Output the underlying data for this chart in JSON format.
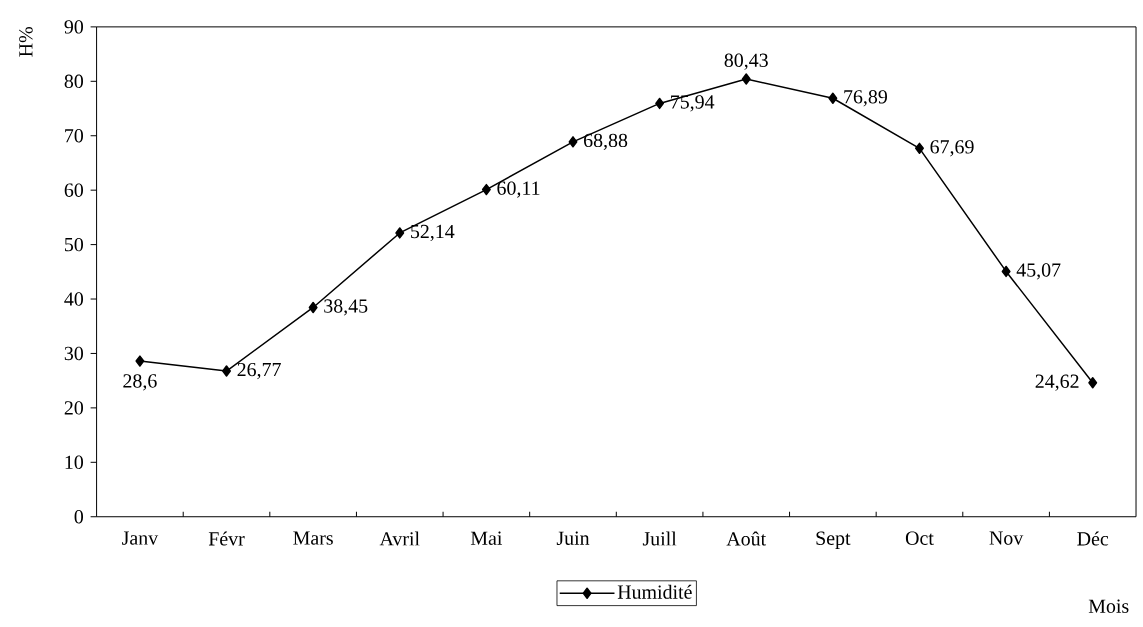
{
  "chart_data": {
    "type": "line",
    "xlabel": "Mois",
    "ylabel": "H%",
    "categories": [
      "Janv",
      "Févr",
      "Mars",
      "Avril",
      "Mai",
      "Juin",
      "Juill",
      "Août",
      "Sept",
      "Oct",
      "Nov",
      "Déc"
    ],
    "series": [
      {
        "name": "Humidité",
        "color": "#000000",
        "values": [
          28.6,
          26.77,
          38.45,
          52.14,
          60.11,
          68.88,
          75.94,
          80.43,
          76.89,
          67.69,
          45.07,
          24.62
        ],
        "value_labels": [
          "28,6",
          "26,77",
          "38,45",
          "52,14",
          "60,11",
          "68,88",
          "75,94",
          "80,43",
          "76,89",
          "67,69",
          "45,07",
          "24,62"
        ]
      }
    ],
    "ylim": [
      0,
      90
    ],
    "yticks": [
      0,
      10,
      20,
      30,
      40,
      50,
      60,
      70,
      80,
      90
    ],
    "legend": "bottom",
    "marker": "diamond",
    "line_style": "solid",
    "grid": false
  }
}
